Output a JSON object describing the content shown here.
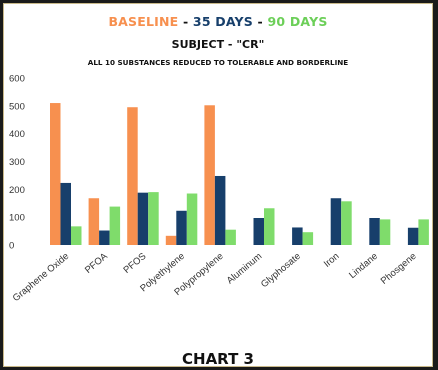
{
  "title": {
    "baseline": "BASELINE",
    "sep1": " - ",
    "days35": "35 DAYS",
    "sep2": " - ",
    "days90": "90 DAYS"
  },
  "subtitle": "SUBJECT - \"CR\"",
  "subtitle2": "ALL 10 SUBSTANCES REDUCED TO TOLERABLE AND BORDERLINE",
  "footer": "CHART 3",
  "colors": {
    "baseline": "#f7904f",
    "days35": "#173f6b",
    "days90": "#7fdc6b",
    "sep": "#111111"
  },
  "chart_data": {
    "type": "bar",
    "categories": [
      "Graphene Oxide",
      "PFOA",
      "PFOS",
      "Polyethylene",
      "Polypropylene",
      "Aluminum",
      "Glyphosate",
      "Iron",
      "Lindane",
      "Phosgene"
    ],
    "series": [
      {
        "name": "BASELINE",
        "values": [
          510,
          168,
          495,
          33,
          502,
          0,
          0,
          0,
          0,
          0
        ]
      },
      {
        "name": "35 DAYS",
        "values": [
          223,
          52,
          188,
          123,
          248,
          97,
          63,
          168,
          97,
          62
        ]
      },
      {
        "name": "90 DAYS",
        "values": [
          67,
          138,
          190,
          185,
          55,
          132,
          46,
          157,
          92,
          92
        ]
      }
    ],
    "ylim": [
      0,
      600
    ],
    "yticks": [
      0,
      100,
      200,
      300,
      400,
      500,
      600
    ],
    "grid": false,
    "legend": "none"
  }
}
